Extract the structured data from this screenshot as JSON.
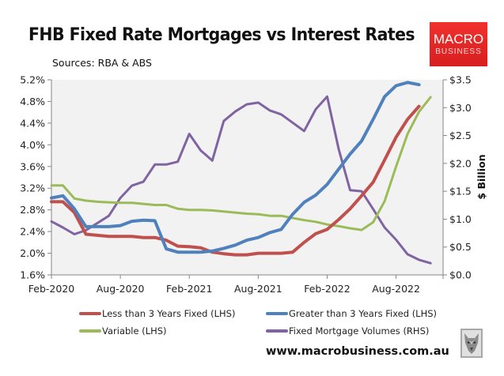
{
  "header": {
    "title": "FHB Fixed Rate Mortgages vs Interest Rates",
    "subtitle": "Sources: RBA & ABS",
    "logo_line1": "MACRO",
    "logo_line2": "BUSINESS"
  },
  "footer": {
    "url": "www.macrobusiness.com.au",
    "mascot": "wolf-icon"
  },
  "colors": {
    "plot_bg": "#f2f2f2",
    "axis": "#868686",
    "red": "#c0504d",
    "blue": "#4f81bd",
    "green": "#9bbb59",
    "purple": "#8064a2",
    "logo_red": "#e52a27"
  },
  "chart_data": {
    "type": "line",
    "title": "FHB Fixed Rate Mortgages vs Interest Rates",
    "subtitle": "Sources: RBA & ABS",
    "xlabel": "",
    "ylabel_left": "",
    "ylabel_right": "$ Billion",
    "x_tick_labels": [
      "Feb-2020",
      "Aug-2020",
      "Feb-2021",
      "Aug-2021",
      "Feb-2022",
      "Aug-2022"
    ],
    "y_left_ticks": [
      "1.6%",
      "2.0%",
      "2.4%",
      "2.8%",
      "3.2%",
      "3.6%",
      "4.0%",
      "4.4%",
      "4.8%",
      "5.2%"
    ],
    "y_right_ticks": [
      "$0.0",
      "$0.5",
      "$1.0",
      "$1.5",
      "$2.0",
      "$2.5",
      "$3.0",
      "$3.5"
    ],
    "ylim_left": [
      1.6,
      5.2
    ],
    "ylim_right": [
      0,
      3.5
    ],
    "grid": false,
    "legend_position": "bottom",
    "x": [
      "Feb-2020",
      "Mar-2020",
      "Apr-2020",
      "May-2020",
      "Jun-2020",
      "Jul-2020",
      "Aug-2020",
      "Sep-2020",
      "Oct-2020",
      "Nov-2020",
      "Dec-2020",
      "Jan-2021",
      "Feb-2021",
      "Mar-2021",
      "Apr-2021",
      "May-2021",
      "Jun-2021",
      "Jul-2021",
      "Aug-2021",
      "Sep-2021",
      "Oct-2021",
      "Nov-2021",
      "Dec-2021",
      "Jan-2022",
      "Feb-2022",
      "Mar-2022",
      "Apr-2022",
      "May-2022",
      "Jun-2022",
      "Jul-2022",
      "Aug-2022",
      "Sep-2022",
      "Oct-2022",
      "Nov-2022"
    ],
    "series": [
      {
        "name": "Less than 3 Years Fixed (LHS)",
        "axis": "left",
        "color": "#c0504d",
        "values": [
          2.95,
          2.95,
          2.75,
          2.35,
          2.33,
          2.31,
          2.31,
          2.31,
          2.29,
          2.29,
          2.24,
          2.13,
          2.12,
          2.1,
          2.02,
          1.99,
          1.97,
          1.97,
          2.0,
          2.0,
          2.0,
          2.02,
          2.2,
          2.36,
          2.44,
          2.62,
          2.82,
          3.06,
          3.31,
          3.72,
          4.14,
          4.47,
          4.71,
          null
        ]
      },
      {
        "name": "Greater than 3 Years Fixed (LHS)",
        "axis": "left",
        "color": "#4f81bd",
        "values": [
          3.02,
          3.06,
          2.82,
          2.49,
          2.49,
          2.49,
          2.51,
          2.59,
          2.61,
          2.6,
          2.08,
          2.02,
          2.02,
          2.02,
          2.04,
          2.09,
          2.15,
          2.24,
          2.29,
          2.38,
          2.44,
          2.72,
          2.94,
          3.07,
          3.27,
          3.55,
          3.83,
          4.07,
          4.47,
          4.89,
          5.09,
          5.15,
          5.11,
          null
        ]
      },
      {
        "name": "Variable (LHS)",
        "axis": "left",
        "color": "#9bbb59",
        "values": [
          3.25,
          3.25,
          3.01,
          2.97,
          2.95,
          2.94,
          2.93,
          2.93,
          2.91,
          2.89,
          2.89,
          2.82,
          2.8,
          2.8,
          2.79,
          2.77,
          2.75,
          2.73,
          2.72,
          2.69,
          2.69,
          2.65,
          2.61,
          2.58,
          2.53,
          2.5,
          2.46,
          2.43,
          2.57,
          2.96,
          3.6,
          4.2,
          4.61,
          4.88
        ]
      },
      {
        "name": "Fixed Mortgage Volumes (RHS)",
        "axis": "right",
        "color": "#8064a2",
        "values": [
          0.96,
          0.85,
          0.73,
          0.8,
          0.93,
          1.06,
          1.38,
          1.6,
          1.67,
          1.98,
          1.98,
          2.03,
          2.53,
          2.23,
          2.05,
          2.76,
          2.93,
          3.06,
          3.09,
          2.95,
          2.88,
          2.73,
          2.58,
          2.97,
          3.2,
          2.26,
          1.52,
          1.5,
          1.18,
          0.85,
          0.63,
          0.37,
          0.27,
          0.21
        ]
      }
    ]
  },
  "legend": [
    {
      "label": "Less than 3 Years Fixed (LHS)",
      "color": "#c0504d"
    },
    {
      "label": "Greater than 3 Years Fixed (LHS)",
      "color": "#4f81bd"
    },
    {
      "label": "Variable (LHS)",
      "color": "#9bbb59"
    },
    {
      "label": "Fixed Mortgage Volumes (RHS)",
      "color": "#8064a2"
    }
  ]
}
